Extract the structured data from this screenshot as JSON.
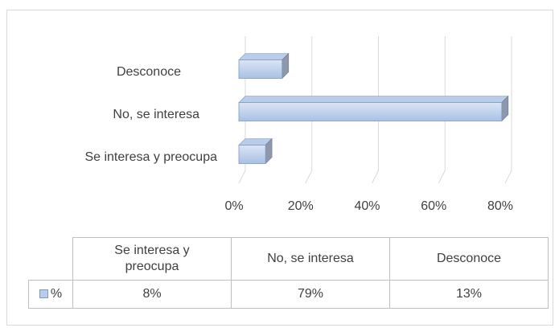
{
  "chart_data": {
    "type": "bar",
    "orientation": "horizontal",
    "categories": [
      "Se interesa y  preocupa",
      "No, se interesa",
      "Desconoce"
    ],
    "series": [
      {
        "name": "%",
        "color": "#b9cdeb",
        "values": [
          8,
          79,
          13
        ],
        "value_labels": [
          "8%",
          "79%",
          "13%"
        ]
      }
    ],
    "xlim": [
      0,
      80
    ],
    "xticks": [
      {
        "value": 0,
        "label": "0%"
      },
      {
        "value": 20,
        "label": "20%"
      },
      {
        "value": 40,
        "label": "40%"
      },
      {
        "value": 60,
        "label": "60%"
      },
      {
        "value": 80,
        "label": "80%"
      }
    ],
    "grid": true,
    "data_table": true
  }
}
